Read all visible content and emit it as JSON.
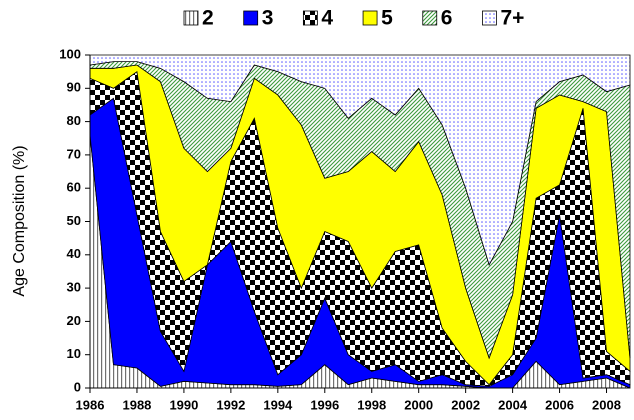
{
  "chart_data": {
    "type": "stacked-area",
    "y_label": "Age Composition (%)",
    "x": [
      1986,
      1987,
      1988,
      1989,
      1990,
      1991,
      1992,
      1993,
      1994,
      1995,
      1996,
      1997,
      1998,
      1999,
      2000,
      2001,
      2002,
      2003,
      2004,
      2005,
      2006,
      2007,
      2008,
      2009
    ],
    "xlim": [
      1986,
      2009
    ],
    "xticks": [
      1986,
      1988,
      1990,
      1992,
      1994,
      1996,
      1998,
      2000,
      2002,
      2004,
      2006,
      2008
    ],
    "ylim": [
      0,
      100
    ],
    "yticks": [
      0,
      10,
      20,
      30,
      40,
      50,
      60,
      70,
      80,
      90,
      100
    ],
    "legend": "top",
    "series": [
      {
        "name": "2",
        "color": "#707070",
        "pattern": "vertical",
        "values": [
          76,
          7,
          6,
          0.5,
          2,
          1.5,
          1,
          1,
          0.5,
          1,
          7,
          1,
          3,
          2,
          1,
          1,
          0.5,
          0,
          0,
          8,
          1,
          2,
          3,
          0
        ]
      },
      {
        "name": "3",
        "color": "#0000ff",
        "pattern": "solid",
        "values": [
          6,
          80,
          46,
          16.5,
          3,
          35.5,
          43,
          22,
          3.5,
          9,
          20,
          9,
          2,
          5,
          1,
          3,
          0.5,
          0.5,
          4,
          7,
          51,
          1,
          1,
          1
        ]
      },
      {
        "name": "4",
        "color": "#000000",
        "pattern": "checker",
        "values": [
          11,
          3,
          43,
          30,
          27,
          0,
          24,
          58,
          44,
          20,
          20,
          34,
          25,
          34,
          41,
          14,
          7,
          0.5,
          6,
          42,
          9,
          81,
          7,
          4
        ]
      },
      {
        "name": "5",
        "color": "#ffff00",
        "pattern": "solid",
        "values": [
          3,
          6,
          2,
          45,
          40,
          28,
          4,
          12,
          40,
          49,
          16,
          21,
          41,
          24,
          31,
          40,
          22,
          8,
          18,
          27,
          27,
          2,
          72,
          4
        ]
      },
      {
        "name": "6",
        "color": "#3c9a3c",
        "pattern": "diagonal",
        "values": [
          1,
          2,
          1,
          4,
          20,
          22,
          14,
          4,
          7,
          13,
          27,
          16,
          16,
          17,
          16,
          21,
          30,
          28,
          22,
          2,
          4,
          8,
          6,
          82
        ]
      },
      {
        "name": "7+",
        "color": "#5a5aff",
        "pattern": "dots",
        "values": [
          3,
          2,
          2,
          4,
          8,
          13,
          14,
          3,
          5,
          8,
          10,
          19,
          13,
          18,
          10,
          21,
          40,
          63,
          50,
          14,
          8,
          6,
          11,
          9
        ]
      }
    ]
  }
}
